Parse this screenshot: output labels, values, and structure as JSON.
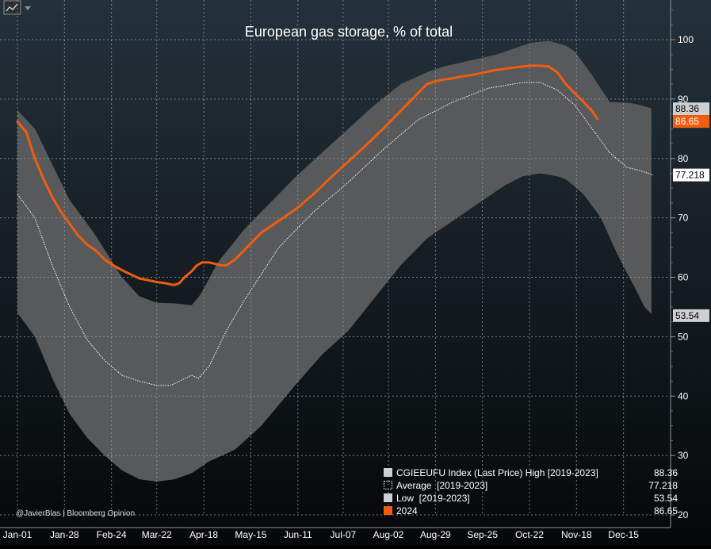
{
  "toolbar": {
    "chart_icon": "line-chart-icon",
    "dropdown_icon": "chevron-down-icon"
  },
  "credit": "@JavierBlas | Bloomberg Opinion",
  "colors": {
    "background_top": "#24313b",
    "background_bottom": "#060809",
    "band": "#58595b",
    "high_tag": "#cfd0d2",
    "series_2024": "#f05d10",
    "average_line": "#ffffff",
    "grid": "#9aa3a8",
    "text": "#ffffff"
  },
  "chart_data": {
    "type": "area",
    "title": "European gas storage, % of total",
    "xlabel": "",
    "ylabel": "",
    "x_tick_labels": [
      "Jan-01",
      "Jan-28",
      "Feb-24",
      "Mar-22",
      "Apr-18",
      "May-15",
      "Jun-11",
      "Jul-07",
      "Aug-02",
      "Aug-29",
      "Sep-25",
      "Oct-22",
      "Nov-18",
      "Dec-15"
    ],
    "x_tick_days": [
      0,
      27,
      54,
      80,
      107,
      134,
      161,
      187,
      213,
      240,
      267,
      294,
      321,
      348
    ],
    "xlim": [
      0,
      365
    ],
    "ylim": [
      20,
      105
    ],
    "y_ticks": [
      20,
      30,
      40,
      50,
      60,
      70,
      80,
      90,
      100
    ],
    "grid": true,
    "legend_position": "bottom-right",
    "series": [
      {
        "name": "CGIEEUFU Index (Last Price) High [2019-2023]",
        "legend_label": "CGIEEUFU Index (Last Price) High [2019-2023]",
        "style": "band-upper",
        "last_value": 88.36,
        "last_value_label": "88.36",
        "x": [
          0,
          10,
          20,
          30,
          45,
          60,
          70,
          80,
          90,
          100,
          105,
          115,
          130,
          145,
          160,
          175,
          190,
          205,
          220,
          235,
          245,
          260,
          275,
          285,
          295,
          305,
          315,
          320,
          330,
          340,
          350,
          355,
          365
        ],
        "values": [
          88.1,
          85.0,
          79.0,
          73.0,
          67.0,
          60.0,
          56.8,
          55.7,
          55.6,
          55.3,
          57.0,
          62.5,
          68.0,
          72.5,
          77.0,
          81.0,
          85.0,
          89.0,
          92.5,
          94.5,
          95.5,
          96.5,
          97.5,
          98.5,
          99.5,
          99.8,
          99.0,
          98.0,
          94.0,
          89.5,
          89.4,
          89.2,
          88.36
        ]
      },
      {
        "name": "Average [2019-2023]",
        "legend_label": "Average  [2019-2023]",
        "style": "dotted",
        "last_value": 77.218,
        "last_value_label": "77.218",
        "x": [
          0,
          10,
          20,
          30,
          40,
          50,
          60,
          70,
          80,
          88,
          93,
          100,
          104,
          110,
          120,
          130,
          150,
          170,
          190,
          210,
          230,
          250,
          270,
          290,
          300,
          310,
          320,
          330,
          340,
          350,
          357,
          365
        ],
        "values": [
          74.0,
          70.0,
          62.0,
          55.0,
          49.5,
          46.0,
          43.5,
          42.5,
          41.8,
          41.8,
          42.5,
          43.5,
          43.0,
          45.0,
          51.0,
          56.0,
          65.0,
          71.0,
          76.0,
          81.5,
          86.5,
          89.5,
          91.8,
          92.8,
          92.8,
          91.5,
          89.0,
          85.0,
          81.0,
          78.5,
          78.0,
          77.218
        ]
      },
      {
        "name": "Low [2019-2023]",
        "legend_label": "Low  [2019-2023]",
        "style": "band-lower",
        "last_value": 53.54,
        "last_value_label": "53.54",
        "x": [
          0,
          10,
          20,
          30,
          40,
          50,
          60,
          70,
          80,
          90,
          100,
          110,
          125,
          140,
          160,
          175,
          190,
          205,
          220,
          235,
          250,
          260,
          270,
          280,
          290,
          300,
          310,
          315,
          325,
          335,
          345,
          355,
          360,
          365
        ],
        "values": [
          54.0,
          50.0,
          43.0,
          37.0,
          33.0,
          30.0,
          27.5,
          26.0,
          25.6,
          26.0,
          27.0,
          29.0,
          31.0,
          35.0,
          42.0,
          47.0,
          51.0,
          56.5,
          62.0,
          66.5,
          69.5,
          71.5,
          73.5,
          75.5,
          77.0,
          77.5,
          77.0,
          76.5,
          74.0,
          70.0,
          63.5,
          58.0,
          55.0,
          53.54
        ]
      },
      {
        "name": "2024",
        "legend_label": "2024",
        "style": "solid",
        "last_value": 86.65,
        "last_value_label": "86.65",
        "x": [
          0,
          5,
          10,
          15,
          20,
          25,
          30,
          35,
          40,
          45,
          50,
          55,
          60,
          65,
          70,
          75,
          80,
          85,
          88,
          90,
          93,
          96,
          100,
          103,
          106,
          110,
          113,
          117,
          120,
          125,
          130,
          135,
          140,
          145,
          150,
          155,
          160,
          170,
          180,
          190,
          200,
          210,
          215,
          220,
          225,
          230,
          235,
          240,
          245,
          250,
          255,
          260,
          265,
          270,
          275,
          280,
          285,
          290,
          295,
          300,
          305,
          310,
          315,
          320,
          325,
          330,
          333
        ],
        "values": [
          86.2,
          84.5,
          80.0,
          76.5,
          73.5,
          71.0,
          69.0,
          67.0,
          65.5,
          64.5,
          63.0,
          62.0,
          61.2,
          60.5,
          59.8,
          59.5,
          59.2,
          59.0,
          58.8,
          58.7,
          59.0,
          60.0,
          61.0,
          62.0,
          62.5,
          62.5,
          62.3,
          62.0,
          62.0,
          63.0,
          64.5,
          66.0,
          67.5,
          68.5,
          69.5,
          70.5,
          71.5,
          74.0,
          76.8,
          79.5,
          82.2,
          85.0,
          86.5,
          88.0,
          89.5,
          91.0,
          92.5,
          93.0,
          93.3,
          93.5,
          93.8,
          94.0,
          94.3,
          94.6,
          94.9,
          95.1,
          95.3,
          95.5,
          95.6,
          95.6,
          95.5,
          94.5,
          92.5,
          91.0,
          89.5,
          88.0,
          86.65
        ]
      }
    ]
  }
}
